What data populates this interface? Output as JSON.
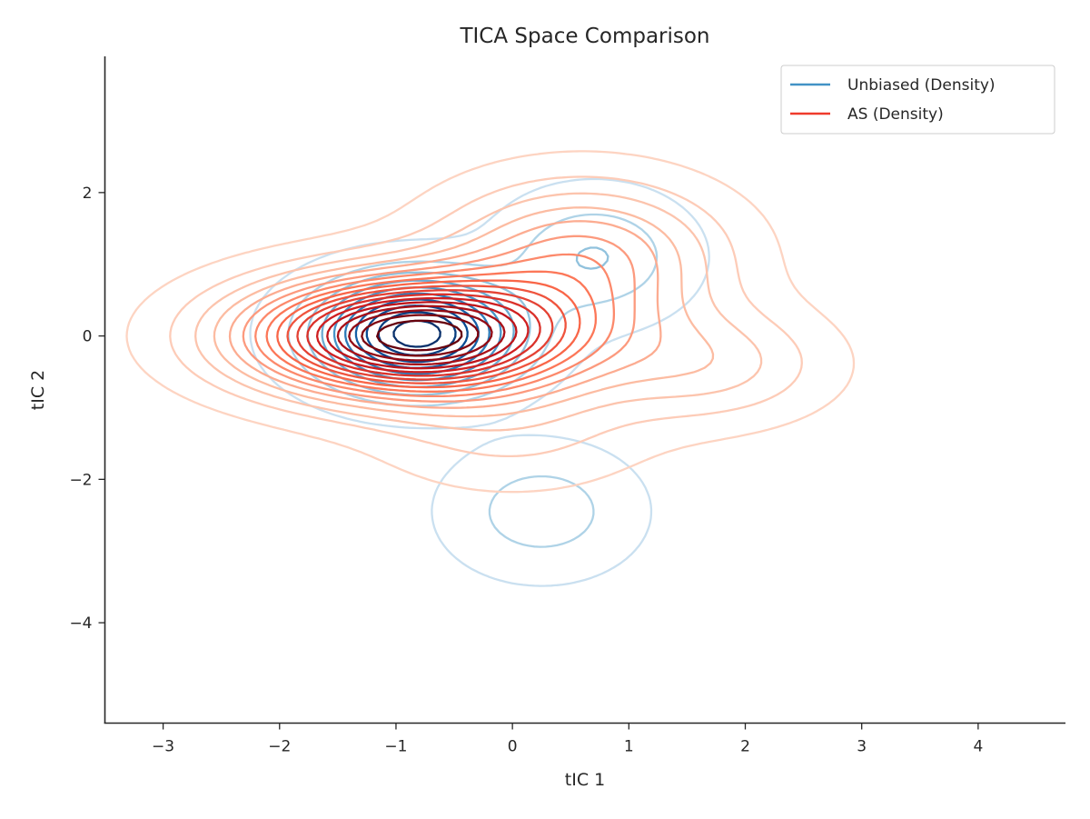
{
  "chart_data": {
    "type": "contour",
    "title": "TICA Space Comparison",
    "xlabel": "tIC 1",
    "ylabel": "tIC 2",
    "xlim": [
      -3.5,
      4.75
    ],
    "ylim": [
      -5.4,
      3.9
    ],
    "xticks": [
      -3,
      -2,
      -1,
      0,
      1,
      2,
      3,
      4
    ],
    "yticks": [
      -4,
      -2,
      0,
      2
    ],
    "grid": false,
    "legend_position": "top-right",
    "series": [
      {
        "name": "Unbiased (Density)",
        "legend_color": "#4292c6",
        "colormap": "Blues",
        "levels": 10,
        "modes": [
          {
            "x": -0.82,
            "y": 0.03,
            "sx": 0.55,
            "sy": 0.5,
            "rho": 0.0,
            "w": 1.0
          },
          {
            "x": 0.7,
            "y": 1.1,
            "sx": 0.5,
            "sy": 0.55,
            "rho": 0.0,
            "w": 0.24
          },
          {
            "x": 0.25,
            "y": -2.45,
            "sx": 0.5,
            "sy": 0.55,
            "rho": 0.0,
            "w": 0.2
          }
        ]
      },
      {
        "name": "AS (Density)",
        "legend_color": "#ef3b2c",
        "colormap": "Reds",
        "levels": 18,
        "modes": [
          {
            "x": -0.85,
            "y": 0.0,
            "sx": 0.95,
            "sy": 0.55,
            "rho": 0.0,
            "w": 1.0
          },
          {
            "x": 0.6,
            "y": 1.1,
            "sx": 0.8,
            "sy": 0.7,
            "rho": 0.0,
            "w": 0.32
          },
          {
            "x": 1.7,
            "y": -0.4,
            "sx": 0.7,
            "sy": 0.55,
            "rho": 0.0,
            "w": 0.16
          },
          {
            "x": 0.0,
            "y": -1.3,
            "sx": 0.8,
            "sy": 0.6,
            "rho": 0.0,
            "w": 0.1
          }
        ]
      }
    ]
  }
}
